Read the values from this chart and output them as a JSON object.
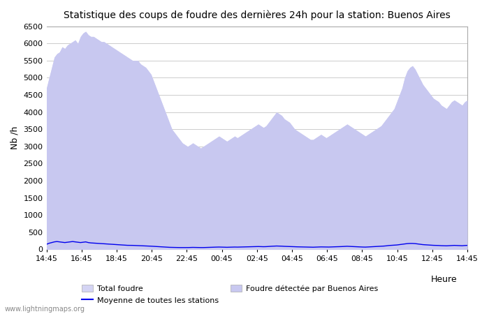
{
  "title": "Statistique des coups de foudre des dernières 24h pour la station: Buenos Aires",
  "ylabel": "Nb /h",
  "xlabel": "Heure",
  "xlabels": [
    "14:45",
    "16:45",
    "18:45",
    "20:45",
    "22:45",
    "00:45",
    "02:45",
    "04:45",
    "06:45",
    "08:45",
    "10:45",
    "12:45",
    "14:45"
  ],
  "ylim": [
    0,
    6500
  ],
  "yticks": [
    0,
    500,
    1000,
    1500,
    2000,
    2500,
    3000,
    3500,
    4000,
    4500,
    5000,
    5500,
    6000,
    6500
  ],
  "bg_color": "#ffffff",
  "plot_bg_color": "#ffffff",
  "fill_total_color": "#d4d4f4",
  "fill_buenos_color": "#c8c8f0",
  "line_mean_color": "#0000ee",
  "grid_color": "#cccccc",
  "watermark": "www.lightningmaps.org",
  "legend": [
    "Total foudre",
    "Moyenne de toutes les stations",
    "Foudre détectée par Buenos Aires"
  ],
  "total_foudre": [
    4700,
    5000,
    5300,
    5600,
    5700,
    5750,
    5900,
    5850,
    5950,
    6000,
    6050,
    6100,
    6000,
    6200,
    6300,
    6350,
    6250,
    6200,
    6200,
    6150,
    6100,
    6050,
    6050,
    6000,
    5950,
    5900,
    5850,
    5800,
    5750,
    5700,
    5650,
    5600,
    5550,
    5500,
    5500,
    5500,
    5400,
    5350,
    5300,
    5200,
    5100,
    4900,
    4700,
    4500,
    4300,
    4100,
    3900,
    3700,
    3500,
    3400,
    3300,
    3200,
    3100,
    3050,
    3000,
    3050,
    3100,
    3050,
    3000,
    2950,
    3000,
    3050,
    3100,
    3150,
    3200,
    3250,
    3300,
    3250,
    3200,
    3150,
    3200,
    3250,
    3300,
    3250,
    3300,
    3350,
    3400,
    3450,
    3500,
    3550,
    3600,
    3650,
    3600,
    3550,
    3600,
    3700,
    3800,
    3900,
    4000,
    3950,
    3900,
    3800,
    3750,
    3700,
    3600,
    3500,
    3450,
    3400,
    3350,
    3300,
    3250,
    3200,
    3200,
    3250,
    3300,
    3350,
    3300,
    3250,
    3300,
    3350,
    3400,
    3450,
    3500,
    3550,
    3600,
    3650,
    3600,
    3550,
    3500,
    3450,
    3400,
    3350,
    3300,
    3350,
    3400,
    3450,
    3500,
    3550,
    3600,
    3700,
    3800,
    3900,
    4000,
    4100,
    4300,
    4500,
    4700,
    5000,
    5200,
    5300,
    5350,
    5250,
    5100,
    4950,
    4800,
    4700,
    4600,
    4500,
    4400,
    4350,
    4300,
    4200,
    4150,
    4100,
    4200,
    4300,
    4350,
    4300,
    4250,
    4200,
    4300,
    4350
  ],
  "foudre_buenos": [
    4700,
    5000,
    5300,
    5600,
    5700,
    5750,
    5900,
    5850,
    5950,
    6000,
    6050,
    6100,
    6000,
    6200,
    6300,
    6350,
    6250,
    6200,
    6200,
    6150,
    6100,
    6050,
    6050,
    6000,
    5950,
    5900,
    5850,
    5800,
    5750,
    5700,
    5650,
    5600,
    5550,
    5500,
    5500,
    5500,
    5400,
    5350,
    5300,
    5200,
    5100,
    4900,
    4700,
    4500,
    4300,
    4100,
    3900,
    3700,
    3500,
    3400,
    3300,
    3200,
    3100,
    3050,
    3000,
    3050,
    3100,
    3050,
    3000,
    2950,
    3000,
    3050,
    3100,
    3150,
    3200,
    3250,
    3300,
    3250,
    3200,
    3150,
    3200,
    3250,
    3300,
    3250,
    3300,
    3350,
    3400,
    3450,
    3500,
    3550,
    3600,
    3650,
    3600,
    3550,
    3600,
    3700,
    3800,
    3900,
    4000,
    3950,
    3900,
    3800,
    3750,
    3700,
    3600,
    3500,
    3450,
    3400,
    3350,
    3300,
    3250,
    3200,
    3200,
    3250,
    3300,
    3350,
    3300,
    3250,
    3300,
    3350,
    3400,
    3450,
    3500,
    3550,
    3600,
    3650,
    3600,
    3550,
    3500,
    3450,
    3400,
    3350,
    3300,
    3350,
    3400,
    3450,
    3500,
    3550,
    3600,
    3700,
    3800,
    3900,
    4000,
    4100,
    4300,
    4500,
    4700,
    5000,
    5200,
    5300,
    5350,
    5250,
    5100,
    4950,
    4800,
    4700,
    4600,
    4500,
    4400,
    4350,
    4300,
    4200,
    4150,
    4100,
    4200,
    4300,
    4350,
    4300,
    4250,
    4200,
    4300,
    4350
  ],
  "mean_line": [
    150,
    180,
    200,
    220,
    230,
    220,
    210,
    200,
    210,
    220,
    230,
    220,
    210,
    200,
    210,
    220,
    200,
    190,
    185,
    180,
    175,
    170,
    165,
    160,
    155,
    150,
    145,
    140,
    135,
    130,
    125,
    120,
    120,
    118,
    115,
    112,
    108,
    105,
    105,
    100,
    95,
    90,
    85,
    80,
    75,
    70,
    65,
    62,
    60,
    58,
    55,
    55,
    55,
    55,
    55,
    58,
    60,
    58,
    55,
    55,
    55,
    58,
    60,
    62,
    65,
    68,
    70,
    68,
    65,
    63,
    65,
    68,
    70,
    68,
    70,
    72,
    74,
    76,
    78,
    80,
    82,
    85,
    82,
    80,
    82,
    88,
    92,
    95,
    100,
    98,
    95,
    90,
    88,
    85,
    82,
    78,
    76,
    74,
    72,
    70,
    68,
    65,
    65,
    68,
    70,
    74,
    72,
    68,
    70,
    74,
    76,
    78,
    80,
    84,
    88,
    92,
    88,
    84,
    80,
    76,
    73,
    70,
    68,
    72,
    76,
    80,
    84,
    88,
    92,
    98,
    105,
    115,
    120,
    125,
    130,
    140,
    150,
    160,
    170,
    175,
    175,
    170,
    160,
    150,
    140,
    135,
    130,
    125,
    120,
    118,
    115,
    110,
    108,
    105,
    110,
    115,
    118,
    115,
    110,
    108,
    115,
    118
  ]
}
